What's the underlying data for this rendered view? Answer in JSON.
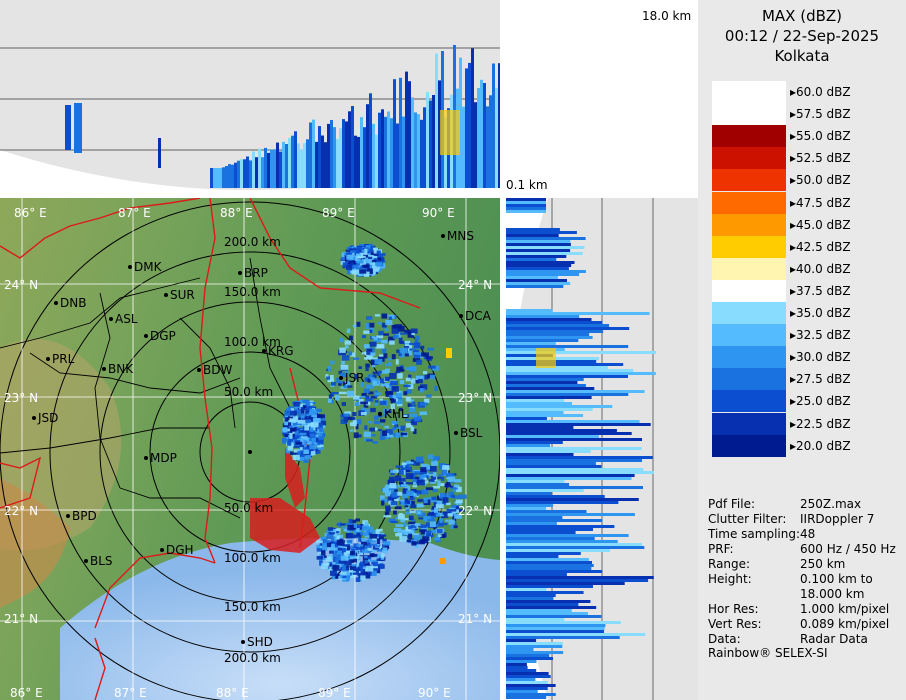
{
  "header": {
    "product": "MAX (dBZ)",
    "datetime": "00:12 / 22-Sep-2025",
    "station": "Kolkata"
  },
  "height_labels": {
    "top": "18.0 km",
    "bottom": "0.1 km"
  },
  "legend": {
    "levels": [
      {
        "label": "60.0 dBZ",
        "color": "#ffffff"
      },
      {
        "label": "57.5 dBZ",
        "color": "#ffffff"
      },
      {
        "label": "55.0 dBZ",
        "color": "#a00000"
      },
      {
        "label": "52.5 dBZ",
        "color": "#cc1100"
      },
      {
        "label": "50.0 dBZ",
        "color": "#ee3300"
      },
      {
        "label": "47.5 dBZ",
        "color": "#ff6a00"
      },
      {
        "label": "45.0 dBZ",
        "color": "#ff9900"
      },
      {
        "label": "42.5 dBZ",
        "color": "#ffcc00"
      },
      {
        "label": "40.0 dBZ",
        "color": "#fff5b0"
      },
      {
        "label": "37.5 dBZ",
        "color": "#ffffff"
      },
      {
        "label": "35.0 dBZ",
        "color": "#88ddff"
      },
      {
        "label": "32.5 dBZ",
        "color": "#55bbff"
      },
      {
        "label": "30.0 dBZ",
        "color": "#2e96f0"
      },
      {
        "label": "27.5 dBZ",
        "color": "#1a72e0"
      },
      {
        "label": "25.0 dBZ",
        "color": "#0b4ed0"
      },
      {
        "label": "22.5 dBZ",
        "color": "#0630b0"
      },
      {
        "label": "20.0 dBZ",
        "color": "#001a90"
      }
    ]
  },
  "info": [
    {
      "key": "Pdf File:",
      "value": "250Z.max"
    },
    {
      "key": "Clutter Filter:",
      "value": "IIRDoppler 7"
    },
    {
      "key": "Time sampling:",
      "value": "48"
    },
    {
      "key": "PRF:",
      "value": "600 Hz / 450 Hz"
    },
    {
      "key": "Range:",
      "value": "250 km"
    },
    {
      "key": "Height:",
      "value": "0.100 km to"
    },
    {
      "key": "",
      "value": "18.000 km"
    },
    {
      "key": "Hor Res:",
      "value": "1.000 km/pixel"
    },
    {
      "key": "Vert Res:",
      "value": "0.089 km/pixel"
    },
    {
      "key": "Data:",
      "value": "Radar Data"
    }
  ],
  "footer": "Rainbow® SELEX-SI",
  "map": {
    "lon_labels_top": [
      "86° E",
      "87° E",
      "88° E",
      "89° E",
      "90° E"
    ],
    "lon_labels_bottom": [
      "86° E",
      "87° E",
      "88° E",
      "89° E",
      "90° E"
    ],
    "lat_labels_left": [
      "24° N",
      "23° N",
      "22° N",
      "21° N"
    ],
    "lat_labels_right": [
      "24° N",
      "23° N",
      "22° N",
      "21° N"
    ],
    "range_labels_north": [
      "200.0 km",
      "150.0 km",
      "100.0 km",
      "50.0 km"
    ],
    "range_labels_south": [
      "50.0 km",
      "100.0 km",
      "150.0 km",
      "200.0 km"
    ],
    "stations": [
      "MNS",
      "DMK",
      "BRP",
      "DNB",
      "SUR",
      "ASL",
      "DGP",
      "DCA",
      "KRG",
      "PRL",
      "BNK",
      "BDW",
      "JSR",
      "KHL",
      "JSD",
      "BSL",
      "MDP",
      "BPD",
      "DGH",
      "BLS",
      "SHD"
    ]
  }
}
